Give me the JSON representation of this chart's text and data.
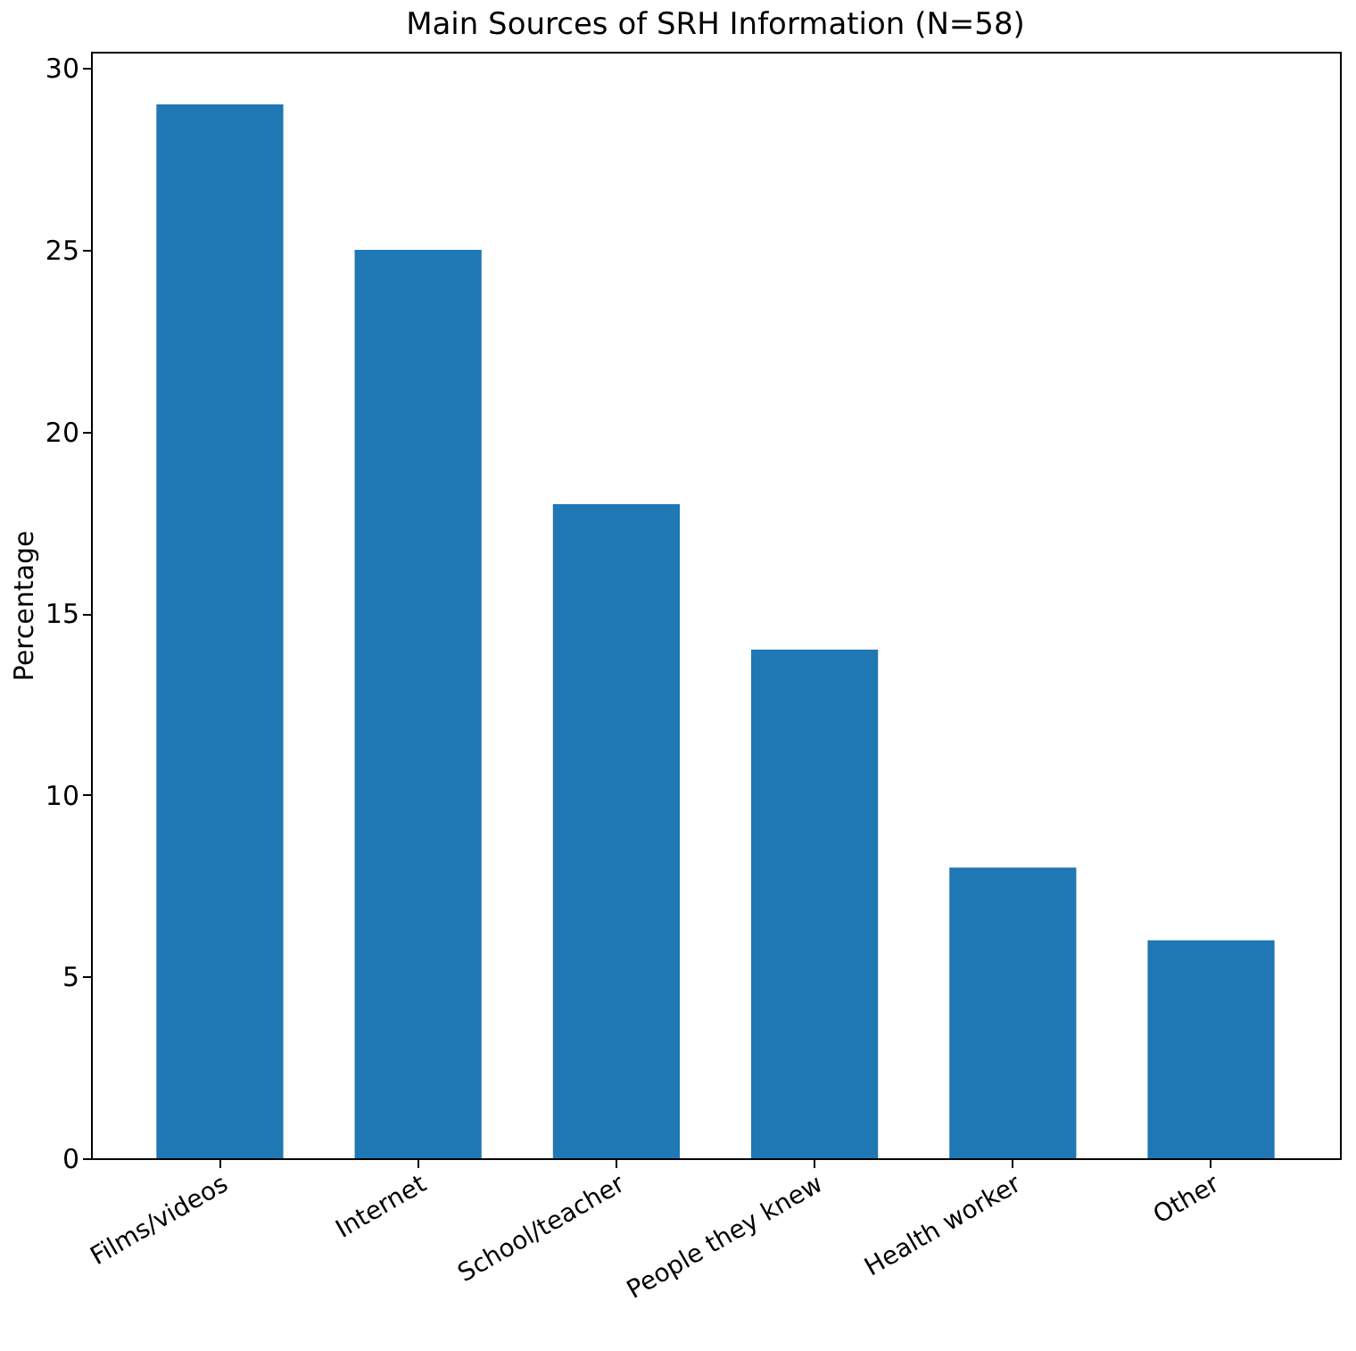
{
  "chart_data": {
    "type": "bar",
    "title": "Main Sources of SRH Information (N=58)",
    "ylabel": "Percentage",
    "categories": [
      "Films/videos",
      "Internet",
      "School/teacher",
      "People they knew",
      "Health worker",
      "Other"
    ],
    "values": [
      29,
      25,
      18,
      14,
      8,
      6
    ],
    "color": "#1f77b4",
    "ylim": [
      0,
      30.45
    ],
    "yticks": [
      0,
      5,
      10,
      15,
      20,
      25,
      30
    ],
    "grid": false
  }
}
